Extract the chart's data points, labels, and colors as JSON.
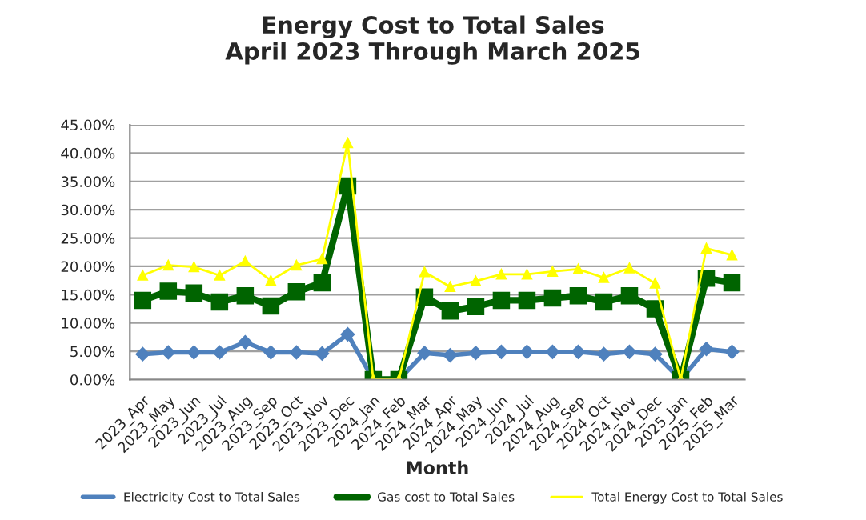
{
  "chart_data": {
    "type": "line",
    "title": "Energy Cost to Total Sales\nApril 2023 Through March 2025",
    "xlabel": "Month",
    "categories": [
      "2023_Apr",
      "2023_May",
      "2023_Jun",
      "2023_Jul",
      "2023_Aug",
      "2023_Sep",
      "2023_Oct",
      "2023_Nov",
      "2023_Dec",
      "2024_Jan",
      "2024_Feb",
      "2024_Mar",
      "2024_Apr",
      "2024_May",
      "2024_Jun",
      "2024_Jul",
      "2024_Aug",
      "2024_Sep",
      "2024_Oct",
      "2024_Nov",
      "2024_Dec",
      "2025_Jan",
      "2025_Feb",
      "2025_Mar"
    ],
    "series": [
      {
        "name": "Electricity Cost to Total Sales",
        "color": "#4f81bd",
        "marker": "diamond",
        "values": [
          4.5,
          4.8,
          4.8,
          4.8,
          6.6,
          4.8,
          4.8,
          4.6,
          8.0,
          0,
          0,
          4.7,
          4.3,
          4.7,
          4.9,
          4.9,
          4.9,
          4.9,
          4.5,
          4.9,
          4.5,
          0,
          5.4,
          4.9
        ]
      },
      {
        "name": "Gas cost to Total Sales",
        "color": "#006400",
        "marker": "square",
        "values": [
          14.0,
          15.6,
          15.3,
          13.7,
          14.8,
          13.0,
          15.5,
          17.1,
          34.2,
          0,
          0,
          14.6,
          12.1,
          12.9,
          14.0,
          14.0,
          14.4,
          14.8,
          13.7,
          14.8,
          12.5,
          0,
          17.9,
          17.1
        ]
      },
      {
        "name": "Total Energy Cost to Total Sales",
        "color": "#ffff00",
        "marker": "triangle",
        "values": [
          18.4,
          20.2,
          19.9,
          18.4,
          20.9,
          17.5,
          20.2,
          21.3,
          41.8,
          0,
          0,
          19.0,
          16.4,
          17.4,
          18.6,
          18.6,
          19.1,
          19.5,
          18.0,
          19.7,
          17.0,
          0,
          23.2,
          22.0
        ]
      }
    ],
    "ylim": [
      0,
      45
    ],
    "yticks": [
      {
        "value": 0,
        "label": "0.00%"
      },
      {
        "value": 5,
        "label": "5.00%"
      },
      {
        "value": 10,
        "label": "10.00%"
      },
      {
        "value": 15,
        "label": "15.00%"
      },
      {
        "value": 20,
        "label": "20.00%"
      },
      {
        "value": 25,
        "label": "25.00%"
      },
      {
        "value": 30,
        "label": "30.00%"
      },
      {
        "value": 35,
        "label": "35.00%"
      },
      {
        "value": 40,
        "label": "40.00%"
      },
      {
        "value": 45,
        "label": "45.00%"
      }
    ],
    "grid": "y",
    "legend": "bottom"
  }
}
